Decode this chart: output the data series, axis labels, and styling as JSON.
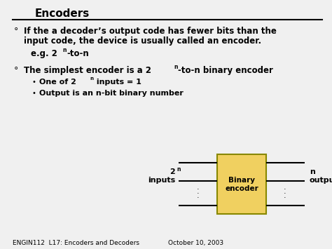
{
  "title": "Encoders",
  "bg_color": "#f0f0f0",
  "title_color": "#000000",
  "title_fontsize": 11,
  "bullet1_text1": "If the a decoder’s output code has fewer bits than the",
  "bullet1_text2": "input code, the device is usually called an encoder.",
  "eg_pre": "e.g. 2",
  "eg_super": "n",
  "eg_post": "-to-n",
  "bullet2_pre": "The simplest encoder is a 2",
  "bullet2_super": "n",
  "bullet2_post": "-to-n binary encoder",
  "sub1_pre": "One of 2",
  "sub1_super": "n",
  "sub1_post": " inputs = 1",
  "sub2": "Output is an n-bit binary number",
  "box_label1": "Binary",
  "box_label2": "encoder",
  "box_color": "#f0d060",
  "box_edge_color": "#888800",
  "left_label1": "2",
  "left_super": "n",
  "left_label2": "inputs",
  "right_label1": "n",
  "right_label2": "outputs",
  "footer_left": "ENGIN112  L17: Encoders and Decoders",
  "footer_right": "October 10, 2003",
  "footer_fontsize": 6.5,
  "text_color": "#000000",
  "main_fontsize": 8.5,
  "sub_fontsize": 8.0
}
